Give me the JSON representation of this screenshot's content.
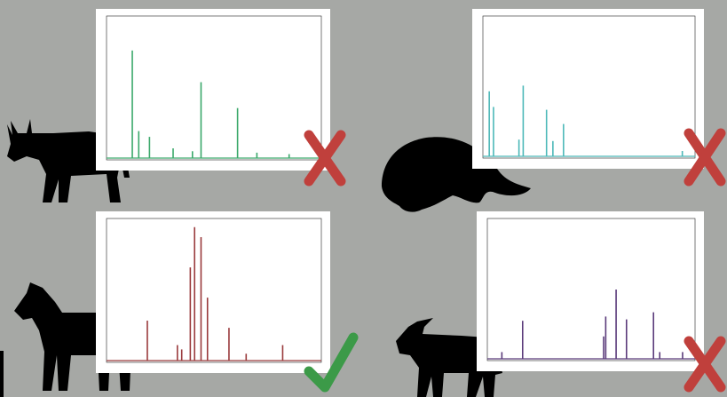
{
  "panels": [
    {
      "color": "#3aa86a",
      "peaks": [
        [
          12,
          76
        ],
        [
          15,
          20
        ],
        [
          20,
          16
        ],
        [
          31,
          8
        ],
        [
          44,
          54
        ],
        [
          61,
          36
        ],
        [
          40,
          6
        ],
        [
          70,
          5
        ],
        [
          85,
          4
        ]
      ]
    },
    {
      "color": "#4cb8b8",
      "peaks": [
        [
          3,
          47
        ],
        [
          5,
          36
        ],
        [
          19,
          51
        ],
        [
          30,
          34
        ],
        [
          38,
          24
        ],
        [
          33,
          12
        ],
        [
          17,
          13
        ],
        [
          94,
          5
        ]
      ]
    },
    {
      "color": "#9a3a3c",
      "peaks": [
        [
          19,
          29
        ],
        [
          33,
          12
        ],
        [
          35,
          9
        ],
        [
          39,
          66
        ],
        [
          41,
          94
        ],
        [
          44,
          87
        ],
        [
          47,
          45
        ],
        [
          57,
          24
        ],
        [
          65,
          6
        ],
        [
          82,
          12
        ]
      ]
    },
    {
      "color": "#5a3a7a",
      "peaks": [
        [
          7,
          6
        ],
        [
          17,
          28
        ],
        [
          56,
          17
        ],
        [
          57,
          31
        ],
        [
          62,
          50
        ],
        [
          67,
          29
        ],
        [
          80,
          34
        ],
        [
          83,
          6
        ],
        [
          94,
          6
        ]
      ]
    }
  ]
}
